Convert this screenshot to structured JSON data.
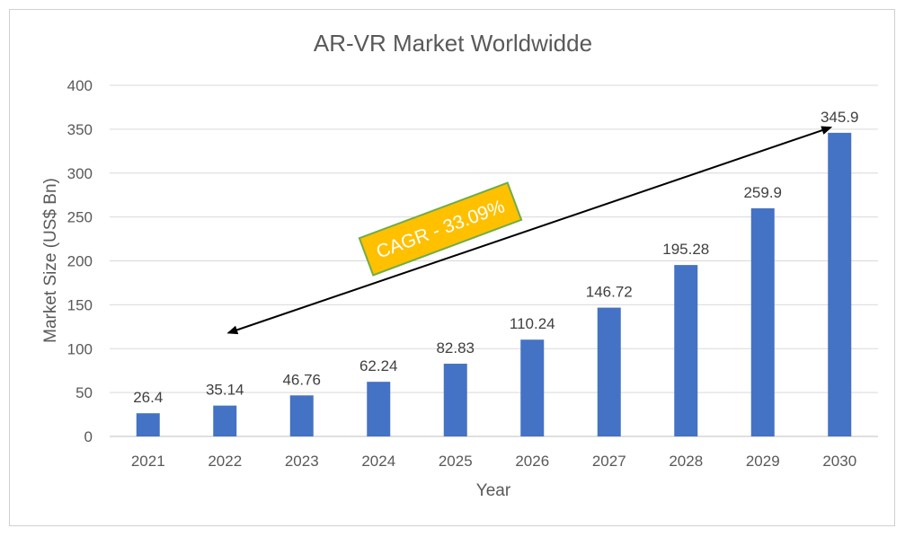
{
  "chart_data": {
    "type": "bar",
    "title": "AR-VR Market Worldwidde",
    "xlabel": "Year",
    "ylabel": "Market Size (US$ Bn)",
    "categories": [
      "2021",
      "2022",
      "2023",
      "2024",
      "2025",
      "2026",
      "2027",
      "2028",
      "2029",
      "2030"
    ],
    "values": [
      26.4,
      35.14,
      46.76,
      62.24,
      82.83,
      110.24,
      146.72,
      195.28,
      259.9,
      345.9
    ],
    "data_labels": [
      "26.4",
      "35.14",
      "46.76",
      "62.24",
      "82.83",
      "110.24",
      "146.72",
      "195.28",
      "259.9",
      "345.9"
    ],
    "ylim": [
      0,
      400
    ],
    "yticks": [
      0,
      50,
      100,
      150,
      200,
      250,
      300,
      350,
      400
    ],
    "ytick_labels": [
      "0",
      "50",
      "100",
      "150",
      "200",
      "250",
      "300",
      "350",
      "400"
    ],
    "grid": true,
    "legend": "none",
    "annotation": {
      "text": "CAGR - 33.09%",
      "arrow_from_year": "2022",
      "arrow_to_year": "2030"
    },
    "colors": {
      "bar": "#4472C4",
      "grid": "#d9d9d9",
      "annotation_fill": "#FFC000",
      "annotation_border": "#70AD47",
      "arrow": "#000000"
    }
  }
}
